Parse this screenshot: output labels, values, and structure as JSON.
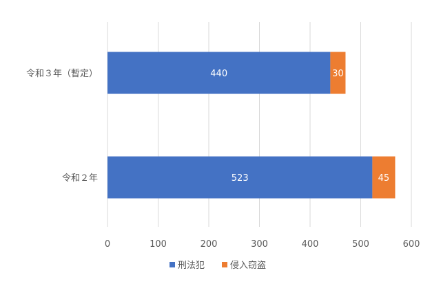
{
  "chart_data": {
    "type": "bar",
    "orientation": "horizontal",
    "stacked": true,
    "categories": [
      "令和３年（暫定）",
      "令和２年"
    ],
    "series": [
      {
        "name": "刑法犯",
        "values": [
          440,
          523
        ],
        "color": "#4472c4"
      },
      {
        "name": "侵入窃盗",
        "values": [
          30,
          45
        ],
        "color": "#ed7d31"
      }
    ],
    "xlim": [
      0,
      600
    ],
    "xticks": [
      "0",
      "100",
      "200",
      "300",
      "400",
      "500",
      "600"
    ],
    "grid": true,
    "legend_position": "bottom",
    "data_labels": true
  }
}
